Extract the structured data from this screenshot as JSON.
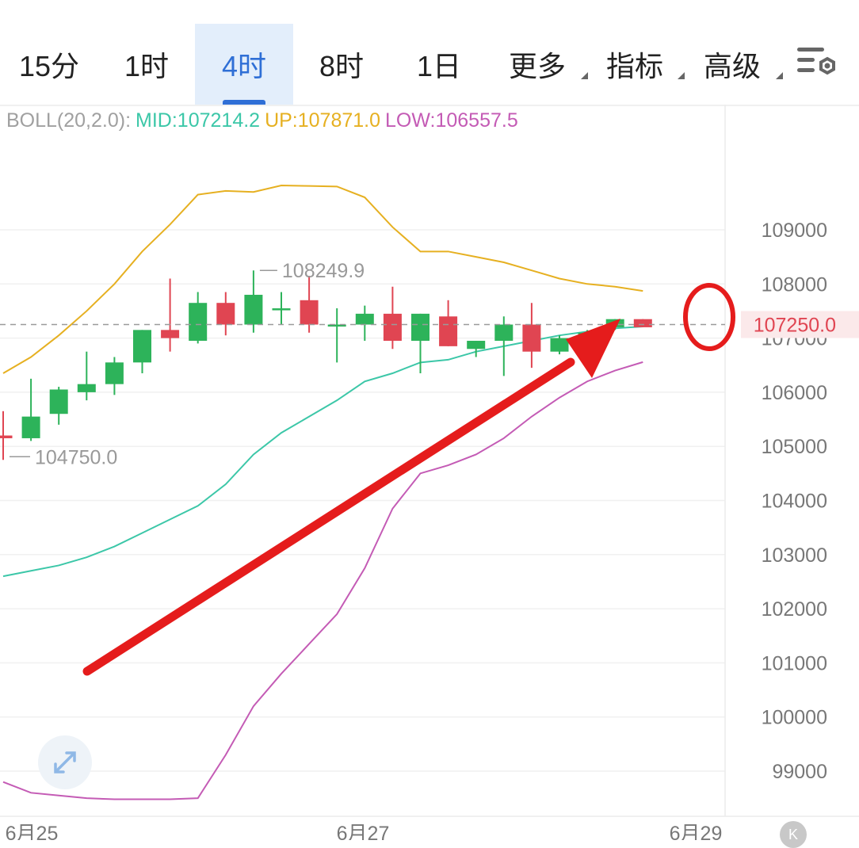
{
  "tabs": [
    {
      "label": "15分",
      "active": false,
      "dropdown": false
    },
    {
      "label": "1时",
      "active": false,
      "dropdown": false
    },
    {
      "label": "4时",
      "active": true,
      "dropdown": false
    },
    {
      "label": "8时",
      "active": false,
      "dropdown": false
    },
    {
      "label": "1日",
      "active": false,
      "dropdown": false
    },
    {
      "label": "更多",
      "active": false,
      "dropdown": true
    },
    {
      "label": "指标",
      "active": false,
      "dropdown": true
    },
    {
      "label": "高级",
      "active": false,
      "dropdown": true
    }
  ],
  "settings_icon": "chart-settings-icon",
  "boll": {
    "label": "BOLL(20,2.0):",
    "mid": "MID:107214.2",
    "up": "UP:107871.0",
    "low": "LOW:106557.5",
    "colors": {
      "label": "#a0a0a0",
      "mid": "#3cc7a8",
      "up": "#e6b021",
      "low": "#c45bb5"
    }
  },
  "colors": {
    "up_candle": "#2db35a",
    "down_candle": "#e04552",
    "annotation": "#e51c1c",
    "grid": "#f0f0f0"
  },
  "chart_data": {
    "type": "candlestick",
    "y_axis_ticks": [
      109000,
      108000,
      107000,
      106000,
      105000,
      104000,
      103000,
      102000,
      101000,
      100000,
      99000
    ],
    "ylim": [
      98000,
      110600
    ],
    "x_labels": [
      "6月25",
      "6月27",
      "6月29"
    ],
    "current_price": "107250.0",
    "high_label": "108249.9",
    "low_label": "104750.0",
    "candles": [
      {
        "o": 105200,
        "c": 105150,
        "h": 105650,
        "l": 104750
      },
      {
        "o": 105150,
        "c": 105550,
        "h": 106250,
        "l": 105100
      },
      {
        "o": 105600,
        "c": 106050,
        "h": 106100,
        "l": 105400
      },
      {
        "o": 106000,
        "c": 106150,
        "h": 106750,
        "l": 105850
      },
      {
        "o": 106150,
        "c": 106550,
        "h": 106650,
        "l": 105950
      },
      {
        "o": 106550,
        "c": 107150,
        "h": 107150,
        "l": 106350
      },
      {
        "o": 107150,
        "c": 107000,
        "h": 108100,
        "l": 106750
      },
      {
        "o": 106950,
        "c": 107650,
        "h": 107850,
        "l": 106900
      },
      {
        "o": 107650,
        "c": 107250,
        "h": 107850,
        "l": 107050
      },
      {
        "o": 107250,
        "c": 107800,
        "h": 108250,
        "l": 107100
      },
      {
        "o": 107550,
        "c": 107550,
        "h": 107850,
        "l": 107250
      },
      {
        "o": 107700,
        "c": 107250,
        "h": 108150,
        "l": 107100
      },
      {
        "o": 107250,
        "c": 107250,
        "h": 107550,
        "l": 106550
      },
      {
        "o": 107250,
        "c": 107450,
        "h": 107600,
        "l": 106950
      },
      {
        "o": 107450,
        "c": 106950,
        "h": 107950,
        "l": 106800
      },
      {
        "o": 106950,
        "c": 107450,
        "h": 107450,
        "l": 106350
      },
      {
        "o": 107400,
        "c": 106850,
        "h": 107700,
        "l": 106850
      },
      {
        "o": 106800,
        "c": 106950,
        "h": 106950,
        "l": 106650
      },
      {
        "o": 106950,
        "c": 107250,
        "h": 107400,
        "l": 106300
      },
      {
        "o": 107250,
        "c": 106750,
        "h": 107650,
        "l": 106450
      },
      {
        "o": 106750,
        "c": 107000,
        "h": 107050,
        "l": 106700
      },
      {
        "o": 107000,
        "c": 107100,
        "h": 107150,
        "l": 106900
      },
      {
        "o": 107200,
        "c": 107350,
        "h": 107350,
        "l": 107150
      },
      {
        "o": 107350,
        "c": 107200,
        "h": 107350,
        "l": 107200
      }
    ],
    "boll_upper": [
      106350,
      106650,
      107050,
      107500,
      108000,
      108600,
      109100,
      109650,
      109720,
      109700,
      109820,
      109810,
      109800,
      109600,
      109050,
      108600,
      108600,
      108500,
      108400,
      108250,
      108100,
      108000,
      107950,
      107871
    ],
    "boll_mid": [
      102600,
      102700,
      102800,
      102950,
      103150,
      103400,
      103650,
      103900,
      104300,
      104850,
      105250,
      105550,
      105850,
      106200,
      106350,
      106550,
      106600,
      106750,
      106850,
      106950,
      107050,
      107120,
      107180,
      107214
    ],
    "boll_lower": [
      98800,
      98600,
      98550,
      98500,
      98480,
      98480,
      98480,
      98500,
      99300,
      100200,
      100800,
      101350,
      101900,
      102750,
      103850,
      104500,
      104650,
      104850,
      105150,
      105550,
      105900,
      106200,
      106400,
      106557
    ]
  }
}
